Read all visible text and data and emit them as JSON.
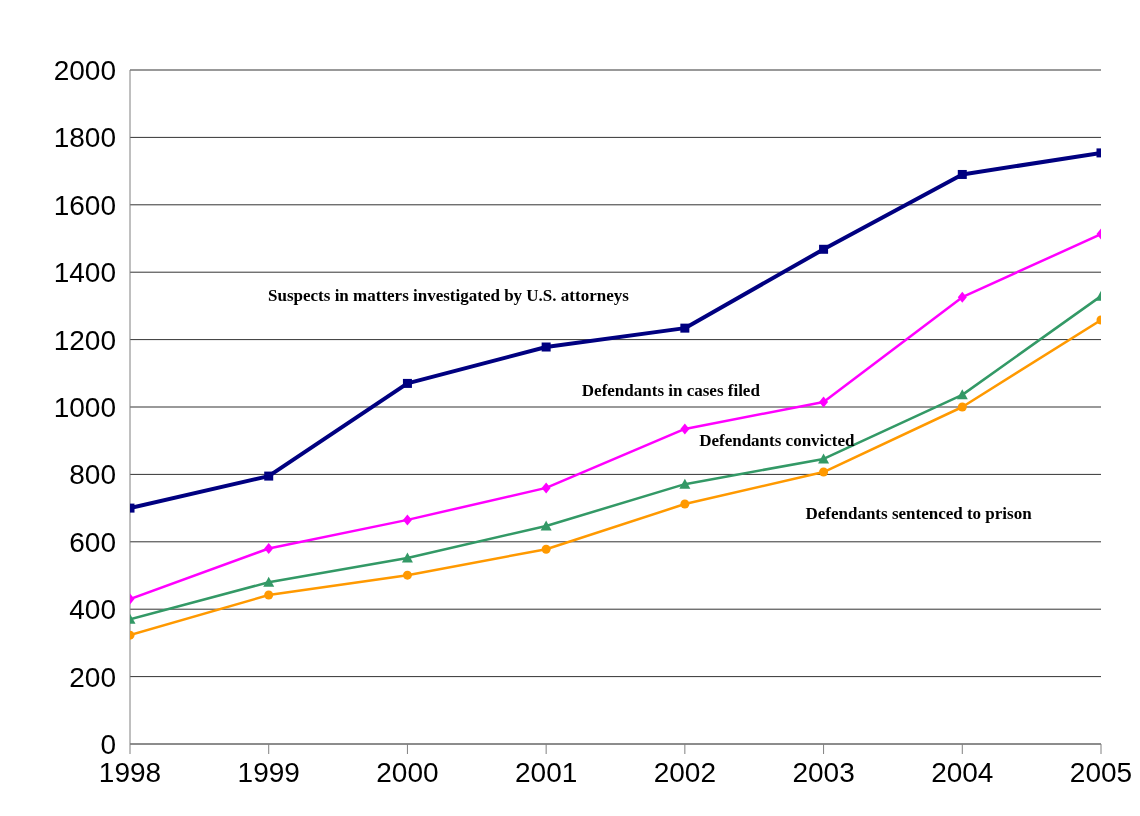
{
  "chart_data": {
    "type": "line",
    "x": [
      1998,
      1999,
      2000,
      2001,
      2002,
      2003,
      2004,
      2005
    ],
    "xlim": [
      1998,
      2005
    ],
    "xticks": [
      1998,
      1999,
      2000,
      2001,
      2002,
      2003,
      2004,
      2005
    ],
    "ylim": [
      0,
      2000
    ],
    "yticks": [
      0,
      200,
      400,
      600,
      800,
      1000,
      1200,
      1400,
      1600,
      1800,
      2000
    ],
    "grid": "y",
    "legend": false,
    "line_style": "solid",
    "series": [
      {
        "name": "Suspects in matters investigated by U.S. attorneys",
        "color": "#000080",
        "marker": "square",
        "values": [
          700,
          795,
          1070,
          1178,
          1234,
          1468,
          1690,
          1754
        ]
      },
      {
        "name": "Defendants in cases filed",
        "color": "#ff00ff",
        "marker": "diamond",
        "values": [
          430,
          580,
          665,
          760,
          935,
          1015,
          1326,
          1513
        ]
      },
      {
        "name": "Defendants convicted",
        "color": "#339966",
        "marker": "triangle",
        "values": [
          370,
          480,
          552,
          647,
          771,
          846,
          1036,
          1329
        ]
      },
      {
        "name": "Defendants sentenced to prison",
        "color": "#ff9900",
        "marker": "circle",
        "values": [
          323,
          442,
          501,
          578,
          712,
          807,
          1000,
          1258
        ]
      }
    ]
  }
}
